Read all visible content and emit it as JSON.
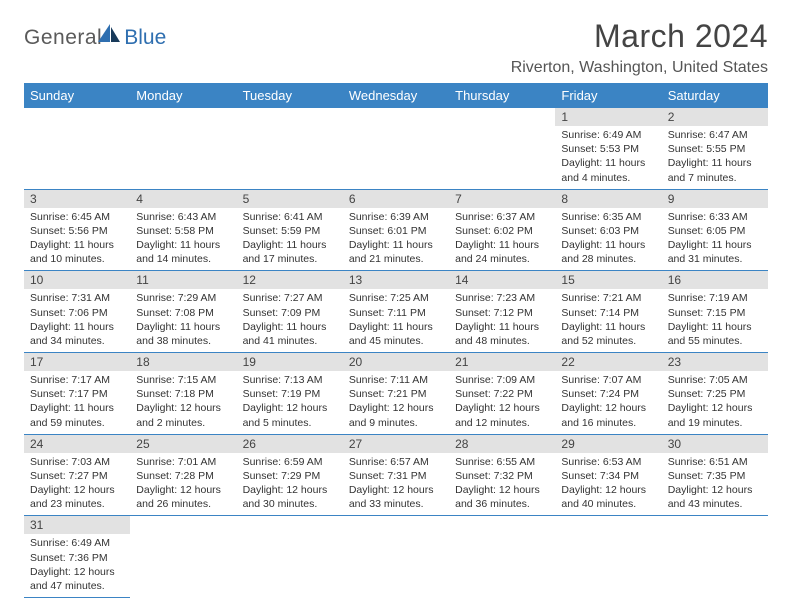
{
  "logo": {
    "general": "General",
    "blue": "Blue"
  },
  "title": "March 2024",
  "location": "Riverton, Washington, United States",
  "colors": {
    "header_bg": "#3b84c4",
    "header_text": "#ffffff",
    "daynum_bg": "#e2e2e2",
    "cell_border": "#3b84c4",
    "title_color": "#444444",
    "body_text": "#333333"
  },
  "fonts": {
    "title_size_pt": 24,
    "location_size_pt": 12,
    "header_size_pt": 10,
    "body_size_pt": 8
  },
  "weekdays": [
    "Sunday",
    "Monday",
    "Tuesday",
    "Wednesday",
    "Thursday",
    "Friday",
    "Saturday"
  ],
  "grid": [
    [
      null,
      null,
      null,
      null,
      null,
      {
        "n": "1",
        "sunrise": "Sunrise: 6:49 AM",
        "sunset": "Sunset: 5:53 PM",
        "day1": "Daylight: 11 hours",
        "day2": "and 4 minutes."
      },
      {
        "n": "2",
        "sunrise": "Sunrise: 6:47 AM",
        "sunset": "Sunset: 5:55 PM",
        "day1": "Daylight: 11 hours",
        "day2": "and 7 minutes."
      }
    ],
    [
      {
        "n": "3",
        "sunrise": "Sunrise: 6:45 AM",
        "sunset": "Sunset: 5:56 PM",
        "day1": "Daylight: 11 hours",
        "day2": "and 10 minutes."
      },
      {
        "n": "4",
        "sunrise": "Sunrise: 6:43 AM",
        "sunset": "Sunset: 5:58 PM",
        "day1": "Daylight: 11 hours",
        "day2": "and 14 minutes."
      },
      {
        "n": "5",
        "sunrise": "Sunrise: 6:41 AM",
        "sunset": "Sunset: 5:59 PM",
        "day1": "Daylight: 11 hours",
        "day2": "and 17 minutes."
      },
      {
        "n": "6",
        "sunrise": "Sunrise: 6:39 AM",
        "sunset": "Sunset: 6:01 PM",
        "day1": "Daylight: 11 hours",
        "day2": "and 21 minutes."
      },
      {
        "n": "7",
        "sunrise": "Sunrise: 6:37 AM",
        "sunset": "Sunset: 6:02 PM",
        "day1": "Daylight: 11 hours",
        "day2": "and 24 minutes."
      },
      {
        "n": "8",
        "sunrise": "Sunrise: 6:35 AM",
        "sunset": "Sunset: 6:03 PM",
        "day1": "Daylight: 11 hours",
        "day2": "and 28 minutes."
      },
      {
        "n": "9",
        "sunrise": "Sunrise: 6:33 AM",
        "sunset": "Sunset: 6:05 PM",
        "day1": "Daylight: 11 hours",
        "day2": "and 31 minutes."
      }
    ],
    [
      {
        "n": "10",
        "sunrise": "Sunrise: 7:31 AM",
        "sunset": "Sunset: 7:06 PM",
        "day1": "Daylight: 11 hours",
        "day2": "and 34 minutes."
      },
      {
        "n": "11",
        "sunrise": "Sunrise: 7:29 AM",
        "sunset": "Sunset: 7:08 PM",
        "day1": "Daylight: 11 hours",
        "day2": "and 38 minutes."
      },
      {
        "n": "12",
        "sunrise": "Sunrise: 7:27 AM",
        "sunset": "Sunset: 7:09 PM",
        "day1": "Daylight: 11 hours",
        "day2": "and 41 minutes."
      },
      {
        "n": "13",
        "sunrise": "Sunrise: 7:25 AM",
        "sunset": "Sunset: 7:11 PM",
        "day1": "Daylight: 11 hours",
        "day2": "and 45 minutes."
      },
      {
        "n": "14",
        "sunrise": "Sunrise: 7:23 AM",
        "sunset": "Sunset: 7:12 PM",
        "day1": "Daylight: 11 hours",
        "day2": "and 48 minutes."
      },
      {
        "n": "15",
        "sunrise": "Sunrise: 7:21 AM",
        "sunset": "Sunset: 7:14 PM",
        "day1": "Daylight: 11 hours",
        "day2": "and 52 minutes."
      },
      {
        "n": "16",
        "sunrise": "Sunrise: 7:19 AM",
        "sunset": "Sunset: 7:15 PM",
        "day1": "Daylight: 11 hours",
        "day2": "and 55 minutes."
      }
    ],
    [
      {
        "n": "17",
        "sunrise": "Sunrise: 7:17 AM",
        "sunset": "Sunset: 7:17 PM",
        "day1": "Daylight: 11 hours",
        "day2": "and 59 minutes."
      },
      {
        "n": "18",
        "sunrise": "Sunrise: 7:15 AM",
        "sunset": "Sunset: 7:18 PM",
        "day1": "Daylight: 12 hours",
        "day2": "and 2 minutes."
      },
      {
        "n": "19",
        "sunrise": "Sunrise: 7:13 AM",
        "sunset": "Sunset: 7:19 PM",
        "day1": "Daylight: 12 hours",
        "day2": "and 5 minutes."
      },
      {
        "n": "20",
        "sunrise": "Sunrise: 7:11 AM",
        "sunset": "Sunset: 7:21 PM",
        "day1": "Daylight: 12 hours",
        "day2": "and 9 minutes."
      },
      {
        "n": "21",
        "sunrise": "Sunrise: 7:09 AM",
        "sunset": "Sunset: 7:22 PM",
        "day1": "Daylight: 12 hours",
        "day2": "and 12 minutes."
      },
      {
        "n": "22",
        "sunrise": "Sunrise: 7:07 AM",
        "sunset": "Sunset: 7:24 PM",
        "day1": "Daylight: 12 hours",
        "day2": "and 16 minutes."
      },
      {
        "n": "23",
        "sunrise": "Sunrise: 7:05 AM",
        "sunset": "Sunset: 7:25 PM",
        "day1": "Daylight: 12 hours",
        "day2": "and 19 minutes."
      }
    ],
    [
      {
        "n": "24",
        "sunrise": "Sunrise: 7:03 AM",
        "sunset": "Sunset: 7:27 PM",
        "day1": "Daylight: 12 hours",
        "day2": "and 23 minutes."
      },
      {
        "n": "25",
        "sunrise": "Sunrise: 7:01 AM",
        "sunset": "Sunset: 7:28 PM",
        "day1": "Daylight: 12 hours",
        "day2": "and 26 minutes."
      },
      {
        "n": "26",
        "sunrise": "Sunrise: 6:59 AM",
        "sunset": "Sunset: 7:29 PM",
        "day1": "Daylight: 12 hours",
        "day2": "and 30 minutes."
      },
      {
        "n": "27",
        "sunrise": "Sunrise: 6:57 AM",
        "sunset": "Sunset: 7:31 PM",
        "day1": "Daylight: 12 hours",
        "day2": "and 33 minutes."
      },
      {
        "n": "28",
        "sunrise": "Sunrise: 6:55 AM",
        "sunset": "Sunset: 7:32 PM",
        "day1": "Daylight: 12 hours",
        "day2": "and 36 minutes."
      },
      {
        "n": "29",
        "sunrise": "Sunrise: 6:53 AM",
        "sunset": "Sunset: 7:34 PM",
        "day1": "Daylight: 12 hours",
        "day2": "and 40 minutes."
      },
      {
        "n": "30",
        "sunrise": "Sunrise: 6:51 AM",
        "sunset": "Sunset: 7:35 PM",
        "day1": "Daylight: 12 hours",
        "day2": "and 43 minutes."
      }
    ],
    [
      {
        "n": "31",
        "sunrise": "Sunrise: 6:49 AM",
        "sunset": "Sunset: 7:36 PM",
        "day1": "Daylight: 12 hours",
        "day2": "and 47 minutes."
      },
      null,
      null,
      null,
      null,
      null,
      null
    ]
  ]
}
